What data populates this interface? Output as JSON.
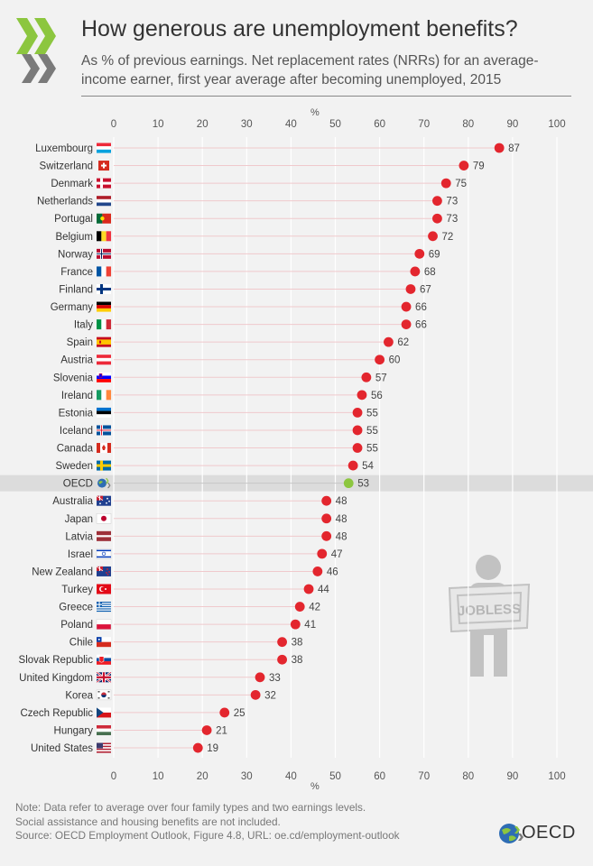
{
  "title": "How generous are unemployment benefits?",
  "subtitle": "As % of previous earnings. Net replacement rates (NRRs) for an average-income earner, first year average after becoming unemployed, 2015",
  "footer": {
    "note1": "Note: Data refer to average over four family types and two earnings levels.",
    "note2": "Social assistance and housing benefits are not included.",
    "source": "Source: OECD Employment Outlook, Figure 4.8, URL: oe.cd/employment-outlook"
  },
  "brand": {
    "name": "OECD"
  },
  "illustration": {
    "sign_text": "JOBLESS"
  },
  "colors": {
    "dot": "#e3262e",
    "highlight_dot": "#8cc63f",
    "highlight_band": "#dcdcdc",
    "grid": "#f0c9cc"
  },
  "chart_data": {
    "type": "scatter",
    "orientation": "horizontal",
    "unit": "%",
    "xlim": [
      0,
      100
    ],
    "xticks": [
      0,
      10,
      20,
      30,
      40,
      50,
      60,
      70,
      80,
      90,
      100
    ],
    "highlight": "OECD",
    "categories": [
      "Luxembourg",
      "Switzerland",
      "Denmark",
      "Netherlands",
      "Portugal",
      "Belgium",
      "Norway",
      "France",
      "Finland",
      "Germany",
      "Italy",
      "Spain",
      "Austria",
      "Slovenia",
      "Ireland",
      "Estonia",
      "Iceland",
      "Canada",
      "Sweden",
      "OECD",
      "Australia",
      "Japan",
      "Latvia",
      "Israel",
      "New Zealand",
      "Turkey",
      "Greece",
      "Poland",
      "Chile",
      "Slovak Republic",
      "United Kingdom",
      "Korea",
      "Czech Republic",
      "Hungary",
      "United States"
    ],
    "values": [
      87,
      79,
      75,
      73,
      73,
      72,
      69,
      68,
      67,
      66,
      66,
      62,
      60,
      57,
      56,
      55,
      55,
      55,
      54,
      53,
      48,
      48,
      48,
      47,
      46,
      44,
      42,
      41,
      38,
      38,
      33,
      32,
      25,
      21,
      19
    ]
  }
}
